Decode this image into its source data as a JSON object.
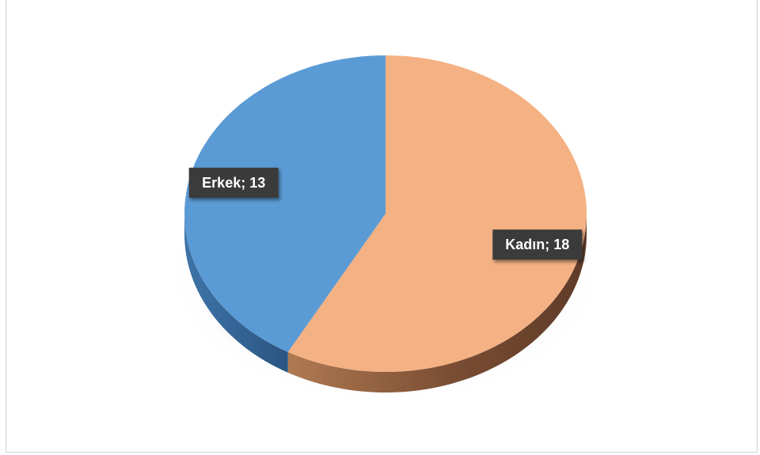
{
  "chart_data": {
    "type": "pie",
    "style": "3d",
    "legend": "none",
    "slices": [
      {
        "category": "Kadın",
        "value": 18,
        "label": "Kadın; 18",
        "color": "#F4B183",
        "side_color": "#8A5738"
      },
      {
        "category": "Erkek",
        "value": 13,
        "label": "Erkek; 13",
        "color": "#5B9BD5",
        "side_color": "#2F5F8F"
      }
    ]
  }
}
